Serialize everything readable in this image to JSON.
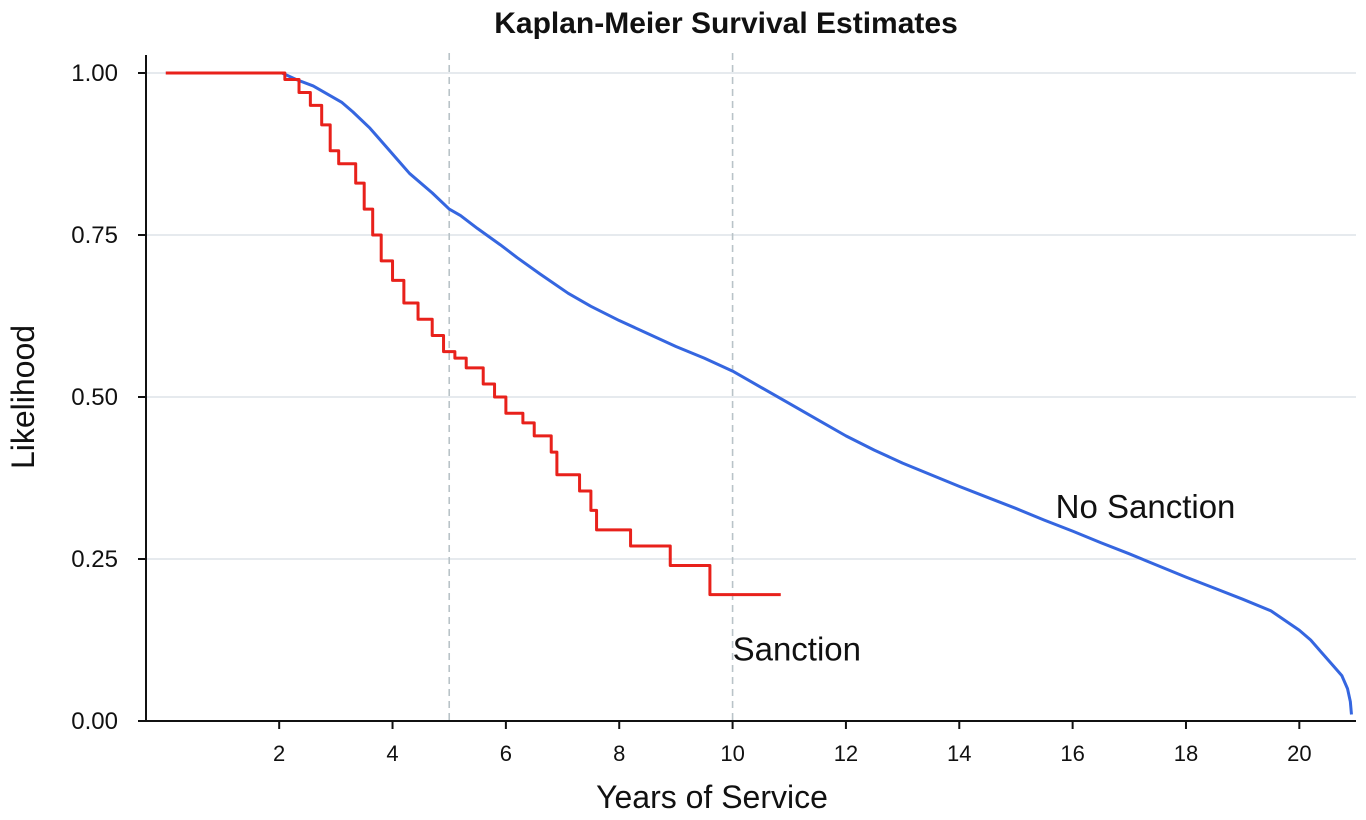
{
  "chart_data": {
    "type": "line",
    "title": "Kaplan-Meier Survival Estimates",
    "xlabel": "Years of Service",
    "ylabel": "Likelihood",
    "xlim": [
      -0.35,
      21.0
    ],
    "ylim": [
      0.0,
      1.0
    ],
    "x_ticks": [
      2,
      4,
      6,
      8,
      10,
      12,
      14,
      16,
      18,
      20
    ],
    "x_tick_labels": [
      "2",
      "4",
      "6",
      "8",
      "10",
      "12",
      "14",
      "16",
      "18",
      "20"
    ],
    "y_ticks": [
      0.0,
      0.25,
      0.5,
      0.75,
      1.0
    ],
    "y_tick_labels": [
      "0.00",
      "0.25",
      "0.50",
      "0.75",
      "1.00"
    ],
    "grid": "horizontal",
    "reference_lines_x": [
      5,
      10
    ],
    "colors": {
      "no_sanction": "#3566e0",
      "sanction": "#e8211b",
      "grid": "#dde3e8",
      "reference": "#b9c3c8",
      "axis": "#111111"
    },
    "series": [
      {
        "name": "No Sanction",
        "step": false,
        "label_at": [
          15.7,
          0.33
        ],
        "x": [
          0,
          2.05,
          2.3,
          2.6,
          2.9,
          3.1,
          3.3,
          3.6,
          3.9,
          4.1,
          4.3,
          4.7,
          5.0,
          5.2,
          5.5,
          5.9,
          6.2,
          6.6,
          7.1,
          7.5,
          8.0,
          8.5,
          9.0,
          9.5,
          10.0,
          10.5,
          11.0,
          11.5,
          12.0,
          12.5,
          13.0,
          13.5,
          14.0,
          14.5,
          15.0,
          15.5,
          16.0,
          16.5,
          17.0,
          17.5,
          18.0,
          18.5,
          19.0,
          19.5,
          20.0,
          20.2,
          20.4,
          20.6,
          20.75,
          20.85,
          20.9,
          20.92
        ],
        "y": [
          1.0,
          1.0,
          0.99,
          0.98,
          0.965,
          0.955,
          0.94,
          0.915,
          0.885,
          0.865,
          0.845,
          0.815,
          0.79,
          0.78,
          0.76,
          0.735,
          0.715,
          0.69,
          0.66,
          0.64,
          0.618,
          0.598,
          0.578,
          0.56,
          0.54,
          0.515,
          0.49,
          0.465,
          0.44,
          0.418,
          0.398,
          0.38,
          0.362,
          0.345,
          0.328,
          0.31,
          0.293,
          0.275,
          0.258,
          0.24,
          0.222,
          0.205,
          0.188,
          0.17,
          0.14,
          0.125,
          0.105,
          0.085,
          0.07,
          0.05,
          0.03,
          0.01
        ]
      },
      {
        "name": "Sanction",
        "step": true,
        "label_at": [
          10.0,
          0.11
        ],
        "x": [
          0,
          2.1,
          2.35,
          2.55,
          2.75,
          2.9,
          3.05,
          3.35,
          3.5,
          3.65,
          3.8,
          4.0,
          4.2,
          4.45,
          4.7,
          4.9,
          5.1,
          5.3,
          5.6,
          5.8,
          6.0,
          6.3,
          6.5,
          6.8,
          6.9,
          7.3,
          7.5,
          7.6,
          8.2,
          8.9,
          9.6,
          10.85
        ],
        "y": [
          1.0,
          0.99,
          0.97,
          0.95,
          0.92,
          0.88,
          0.86,
          0.83,
          0.79,
          0.75,
          0.71,
          0.68,
          0.645,
          0.62,
          0.595,
          0.57,
          0.56,
          0.545,
          0.52,
          0.5,
          0.475,
          0.46,
          0.44,
          0.415,
          0.38,
          0.355,
          0.325,
          0.295,
          0.27,
          0.24,
          0.195,
          0.195
        ]
      }
    ]
  }
}
